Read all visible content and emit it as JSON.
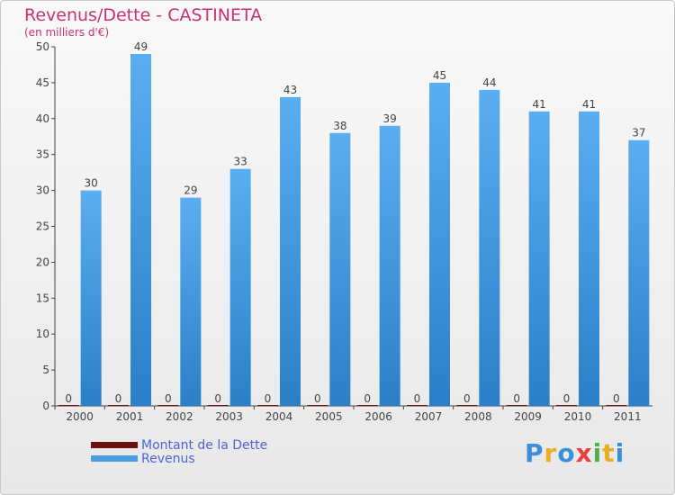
{
  "title": "Revenus/Dette - CASTINETA",
  "subtitle": "(en milliers d'€)",
  "legend": {
    "dette_label": "Montant de la Dette",
    "revenus_label": "Revenus"
  },
  "logo": {
    "text": "Proxiti"
  },
  "colors": {
    "dette": "#6b0f0f",
    "revenus": "#4a9fe0",
    "title": "#c8326e",
    "legend_text": "#4f62d8"
  },
  "chart_data": {
    "type": "bar",
    "title": "Revenus/Dette - CASTINETA",
    "subtitle": "(en milliers d'€)",
    "xlabel": "",
    "ylabel": "",
    "categories": [
      "2000",
      "2001",
      "2002",
      "2003",
      "2004",
      "2005",
      "2006",
      "2007",
      "2008",
      "2009",
      "2010",
      "2011"
    ],
    "series": [
      {
        "name": "Montant de la Dette",
        "values": [
          0,
          0,
          0,
          0,
          0,
          0,
          0,
          0,
          0,
          0,
          0,
          0
        ]
      },
      {
        "name": "Revenus",
        "values": [
          30,
          49,
          29,
          33,
          43,
          38,
          39,
          45,
          44,
          41,
          41,
          37
        ]
      }
    ],
    "ylim": [
      0,
      50
    ],
    "yticks": [
      0,
      5,
      10,
      15,
      20,
      25,
      30,
      35,
      40,
      45,
      50
    ],
    "grid": false,
    "legend_position": "bottom-left"
  }
}
